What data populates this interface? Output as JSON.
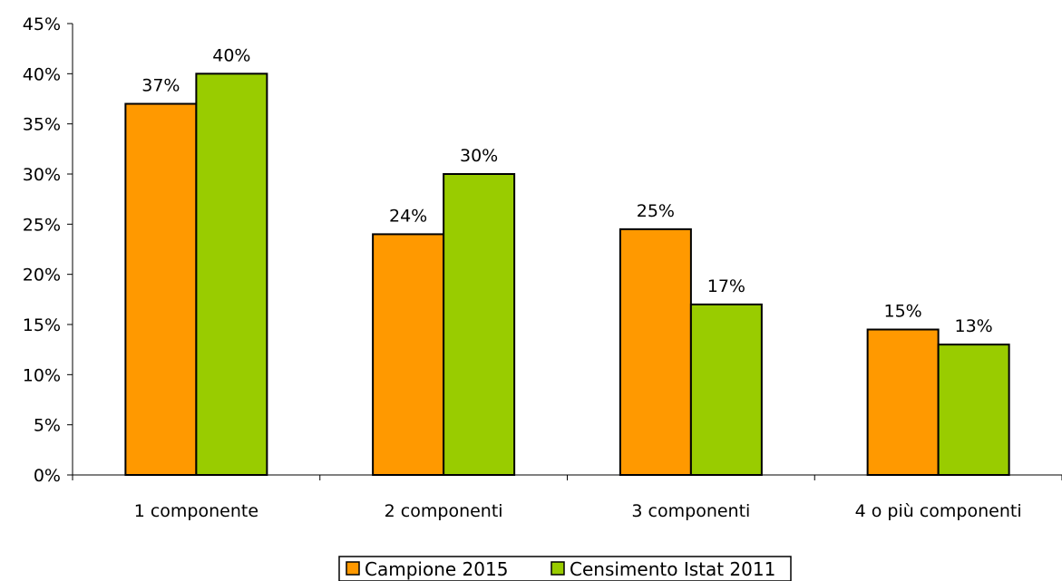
{
  "chart_data": {
    "type": "bar",
    "categories": [
      "1 componente",
      "2 componenti",
      "3 componenti",
      "4 o più componenti"
    ],
    "series": [
      {
        "name": "Campione 2015",
        "color": "#FF9900",
        "values": [
          37,
          24,
          24.5,
          14.5
        ],
        "labels": [
          "37%",
          "24%",
          "25%",
          "15%"
        ]
      },
      {
        "name": "Censimento Istat 2011",
        "color": "#99CC00",
        "values": [
          40,
          30,
          17,
          13
        ],
        "labels": [
          "40%",
          "30%",
          "17%",
          "13%"
        ]
      }
    ],
    "ylim": [
      0,
      45
    ],
    "yticks": [
      0,
      5,
      10,
      15,
      20,
      25,
      30,
      35,
      40,
      45
    ],
    "ytick_labels": [
      "0%",
      "5%",
      "10%",
      "15%",
      "20%",
      "25%",
      "30%",
      "35%",
      "40%",
      "45%"
    ],
    "grid": false,
    "legend_position": "bottom"
  }
}
